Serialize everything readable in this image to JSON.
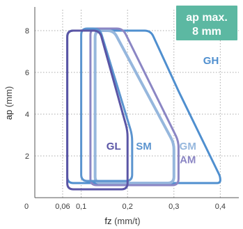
{
  "chart_data": {
    "type": "area",
    "xlabel": "fz",
    "xunit": "(mm/t)",
    "ylabel": "ap",
    "yunit": "(mm)",
    "xlim": [
      0,
      0.44
    ],
    "ylim": [
      0,
      9
    ],
    "x_ticks": [
      {
        "value": 0.06,
        "label": "0,06"
      },
      {
        "value": 0.1,
        "label": "0,1"
      },
      {
        "value": 0.2,
        "label": "0,2"
      },
      {
        "value": 0.3,
        "label": "0,3"
      },
      {
        "value": 0.4,
        "label": "0,4"
      }
    ],
    "x_origin_label": "0",
    "y_ticks": [
      2,
      4,
      6,
      8
    ],
    "grid": true,
    "badge": {
      "lines": [
        "ap max.",
        "8 mm"
      ],
      "color": "#5cb8a2"
    },
    "series": [
      {
        "name": "GH",
        "color": "#4f8fcf",
        "label_at": [
          0.38,
          6.4
        ],
        "outline": [
          [
            0.07,
            8
          ],
          [
            0.25,
            8
          ],
          [
            0.31,
            5.1
          ],
          [
            0.4,
            1
          ],
          [
            0.4,
            0.7
          ],
          [
            0.07,
            0.7
          ]
        ]
      },
      {
        "name": "GM",
        "color": "#96b7dd",
        "label_at": [
          0.33,
          2.3
        ],
        "outline": [
          [
            0.13,
            8
          ],
          [
            0.17,
            8
          ],
          [
            0.3,
            2.6
          ],
          [
            0.3,
            0.7
          ],
          [
            0.13,
            0.7
          ]
        ]
      },
      {
        "name": "AM",
        "color": "#8b86c4",
        "label_at": [
          0.33,
          1.65
        ],
        "outline": [
          [
            0.12,
            8.1
          ],
          [
            0.19,
            8.1
          ],
          [
            0.31,
            2.7
          ],
          [
            0.31,
            0.6
          ],
          [
            0.12,
            0.6
          ]
        ]
      },
      {
        "name": "SM",
        "color": "#5b94cf",
        "label_at": [
          0.235,
          2.3
        ],
        "outline": [
          [
            0.1,
            8.1
          ],
          [
            0.14,
            8.1
          ],
          [
            0.21,
            3.0
          ],
          [
            0.21,
            0.8
          ],
          [
            0.1,
            0.8
          ]
        ]
      },
      {
        "name": "GL",
        "color": "#5a55a5",
        "label_at": [
          0.17,
          2.3
        ],
        "outline": [
          [
            0.07,
            8
          ],
          [
            0.14,
            8
          ],
          [
            0.2,
            3.2
          ],
          [
            0.2,
            0.4
          ],
          [
            0.07,
            0.4
          ]
        ]
      }
    ]
  }
}
